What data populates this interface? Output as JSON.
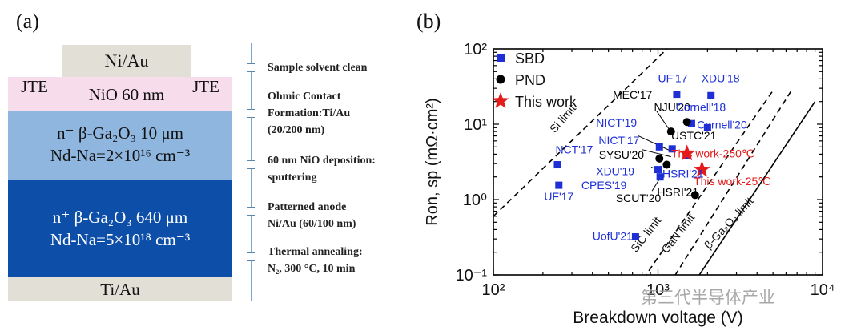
{
  "panel_a": {
    "label": "(a)",
    "layers": [
      {
        "id": "top-contact",
        "text": [
          "Ni/Au"
        ],
        "color": "#e2dfd7"
      },
      {
        "id": "jte-left",
        "text": [
          "JTE"
        ],
        "color": "#f7dcec"
      },
      {
        "id": "nio",
        "text": [
          "NiO 60 nm"
        ],
        "color": "#f7dcec"
      },
      {
        "id": "jte-right",
        "text": [
          "JTE"
        ],
        "color": "#f7dcec"
      },
      {
        "id": "drift",
        "text": [
          "n⁻ β-Ga₂O₃ 10 μm",
          "Nd-Na=2×10¹⁶ cm⁻³"
        ],
        "color": "#8fb6df"
      },
      {
        "id": "substrate",
        "text": [
          "n⁺ β-Ga₂O₃ 640 μm",
          "Nd-Na=5×10¹⁸ cm⁻³"
        ],
        "color": "#0d4fa8"
      },
      {
        "id": "bottom-contact",
        "text": [
          "Ti/Au"
        ],
        "color": "#e2dfd7"
      }
    ],
    "steps": [
      [
        "Sample solvent clean"
      ],
      [
        "Ohmic Contact",
        "Formation:Ti/Au",
        "(20/200 nm)"
      ],
      [
        "60 nm NiO deposition:",
        "sputtering"
      ],
      [
        "Patterned anode",
        "Ni/Au (60/100 nm)"
      ],
      [
        "Thermal annealing:",
        "N₂, 300 °C, 10 min"
      ]
    ]
  },
  "watermark": "第三代半导体产业",
  "chart_data": {
    "type": "scatter",
    "panel_label": "(b)",
    "xscale": "log",
    "yscale": "log",
    "xlim": [
      100,
      10000
    ],
    "ylim": [
      0.1,
      100
    ],
    "xlabel": "Breakdown voltage (V)",
    "ylabel": "Ron, sp (mΩ·cm²)",
    "xticks": [
      {
        "value": 100,
        "label": "10²"
      },
      {
        "value": 1000,
        "label": "10³"
      },
      {
        "value": 10000,
        "label": "10⁴"
      }
    ],
    "yticks": [
      {
        "value": 0.1,
        "label": "10⁻¹"
      },
      {
        "value": 1,
        "label": "10⁰"
      },
      {
        "value": 10,
        "label": "10¹"
      },
      {
        "value": 100,
        "label": "10²"
      }
    ],
    "legend": {
      "placement": "top-left",
      "entries": [
        {
          "name": "SBD",
          "marker": "square",
          "color": "#1e2fd6"
        },
        {
          "name": "PND",
          "marker": "circle",
          "color": "#000000"
        },
        {
          "name": "This work",
          "marker": "star",
          "color": "#e31b1b"
        }
      ]
    },
    "limit_lines": [
      {
        "name": "Si limit",
        "style": "dashed",
        "x": [
          100,
          1500
        ],
        "y": [
          0.6,
          180
        ]
      },
      {
        "name": "SiC limit",
        "style": "dashed",
        "x": [
          700,
          5000
        ],
        "y": [
          0.055,
          28
        ]
      },
      {
        "name": "GaN limit",
        "style": "dashed",
        "x": [
          1100,
          6600
        ],
        "y": [
          0.06,
          30
        ]
      },
      {
        "name": "β-Ga₂O₃ limit",
        "style": "solid",
        "x": [
          1600,
          9000
        ],
        "y": [
          0.07,
          20
        ]
      }
    ],
    "series": [
      {
        "name": "SBD",
        "marker": "square",
        "color": "#1e2fd6",
        "points": [
          {
            "x": 245,
            "y": 2.9
          },
          {
            "x": 250,
            "y": 1.55
          },
          {
            "x": 730,
            "y": 0.32
          },
          {
            "x": 1000,
            "y": 2.5
          },
          {
            "x": 1030,
            "y": 2.0
          },
          {
            "x": 1020,
            "y": 5.0
          },
          {
            "x": 1220,
            "y": 4.7
          },
          {
            "x": 1300,
            "y": 25
          },
          {
            "x": 1500,
            "y": 3.8
          },
          {
            "x": 1600,
            "y": 10.2
          },
          {
            "x": 2000,
            "y": 9.0
          },
          {
            "x": 2100,
            "y": 24
          }
        ]
      },
      {
        "name": "PND",
        "marker": "circle",
        "color": "#000000",
        "points": [
          {
            "x": 1200,
            "y": 8.0
          },
          {
            "x": 1500,
            "y": 10.7
          },
          {
            "x": 1020,
            "y": 3.5
          },
          {
            "x": 1130,
            "y": 2.9
          },
          {
            "x": 1680,
            "y": 1.15
          }
        ]
      },
      {
        "name": "This work",
        "marker": "star",
        "color": "#e31b1b",
        "points": [
          {
            "x": 1500,
            "y": 4.1
          },
          {
            "x": 1850,
            "y": 2.5
          }
        ]
      }
    ],
    "annotations": [
      {
        "text": "UF'17",
        "x": 1230,
        "y": 36,
        "color": "#1e2fd6"
      },
      {
        "text": "XDU'18",
        "x": 2400,
        "y": 36,
        "color": "#1e2fd6"
      },
      {
        "text": "MEC'17",
        "x": 700,
        "y": 22,
        "color": "#000000"
      },
      {
        "text": "NJU'20",
        "x": 1220,
        "y": 15,
        "color": "#000000"
      },
      {
        "text": "Cornell'18",
        "x": 1820,
        "y": 15,
        "color": "#1e2fd6"
      },
      {
        "text": "NICT'19",
        "x": 560,
        "y": 9.3,
        "color": "#1e2fd6"
      },
      {
        "text": "USTC'21",
        "x": 1650,
        "y": 6.3,
        "color": "#000000"
      },
      {
        "text": "Cornell'20",
        "x": 2450,
        "y": 8.7,
        "color": "#1e2fd6"
      },
      {
        "text": "NICT'17",
        "x": 580,
        "y": 5.4,
        "color": "#1e2fd6"
      },
      {
        "text": "NCT'17",
        "x": 310,
        "y": 4.1,
        "color": "#1e2fd6"
      },
      {
        "text": "SYSU'20",
        "x": 600,
        "y": 3.5,
        "color": "#000000"
      },
      {
        "text": "This work-250℃",
        "x": 2150,
        "y": 3.6,
        "color": "#e31b1b"
      },
      {
        "text": "HSRI'21",
        "x": 1420,
        "y": 1.95,
        "color": "#1e2fd6"
      },
      {
        "text": "XDU'19",
        "x": 550,
        "y": 2.1,
        "color": "#1e2fd6"
      },
      {
        "text": "This work-25℃",
        "x": 2820,
        "y": 1.55,
        "color": "#e31b1b"
      },
      {
        "text": "CPES'19",
        "x": 470,
        "y": 1.38,
        "color": "#1e2fd6"
      },
      {
        "text": "HSRI'21",
        "x": 1320,
        "y": 1.12,
        "color": "#000000"
      },
      {
        "text": "UF'17",
        "x": 250,
        "y": 0.98,
        "color": "#1e2fd6"
      },
      {
        "text": "SCUT'20",
        "x": 760,
        "y": 0.93,
        "color": "#000000"
      },
      {
        "text": "UofU'21",
        "x": 530,
        "y": 0.29,
        "color": "#1e2fd6"
      }
    ],
    "limit_labels": [
      {
        "text": "Si limit",
        "x": 275,
        "y": 11,
        "angle": -49
      },
      {
        "text": "SiC limit",
        "x": 880,
        "y": 0.32,
        "angle": -52
      },
      {
        "text": "GaN limit",
        "x": 1380,
        "y": 0.33,
        "angle": -52
      },
      {
        "text": "β-Ga₂O₃ limit",
        "x": 2800,
        "y": 0.45,
        "angle": -47
      }
    ],
    "pointer_lines": [
      {
        "from": [
          980,
          15
        ],
        "to": [
          1180,
          8.3
        ]
      },
      {
        "from": [
          1480,
          12.5
        ],
        "to": [
          1470,
          10.9
        ]
      },
      {
        "from": [
          760,
          7.0
        ],
        "to": [
          1200,
          4.4
        ]
      },
      {
        "from": [
          800,
          4.6
        ],
        "to": [
          1200,
          3.7
        ]
      },
      {
        "from": [
          910,
          2.7
        ],
        "to": [
          1020,
          2.45
        ]
      },
      {
        "from": [
          920,
          1.3
        ],
        "to": [
          1040,
          2.0
        ]
      }
    ]
  }
}
